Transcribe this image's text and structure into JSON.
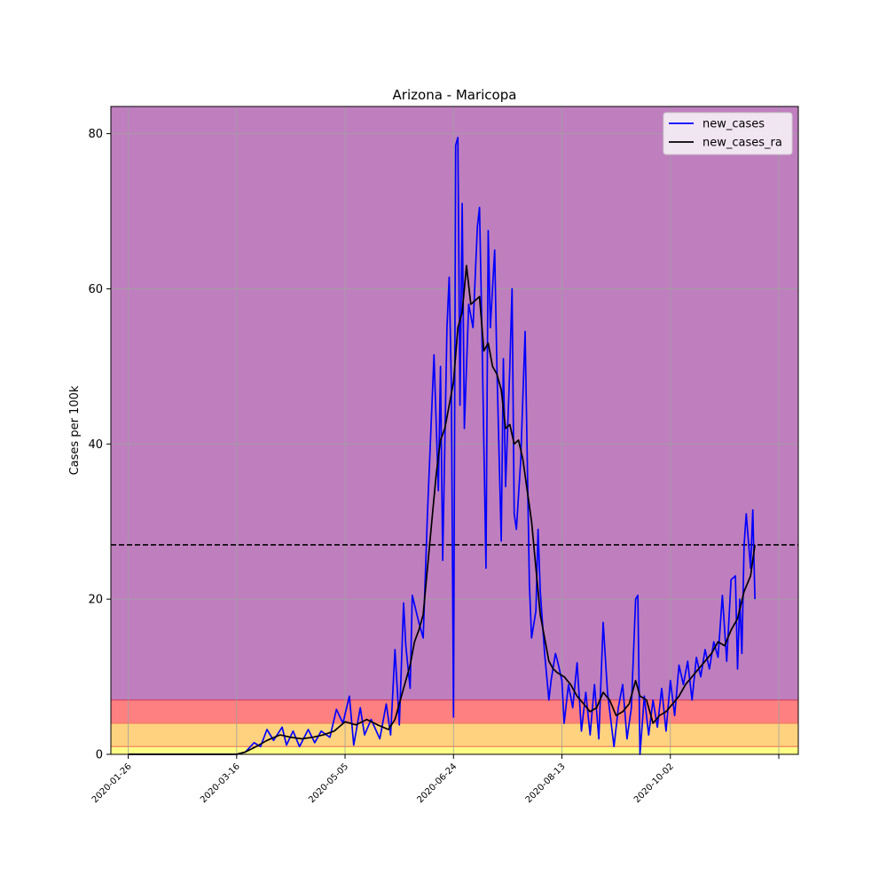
{
  "chart_data": {
    "type": "line",
    "title": "Arizona - Maricopa",
    "xlabel": "",
    "ylabel": "Cases per 100k",
    "x_ticks": [
      "2020-01-26",
      "2020-03-16",
      "2020-05-05",
      "2020-06-24",
      "2020-08-13",
      "2020-10-02"
    ],
    "x_range": [
      "2020-01-18",
      "2020-11-30"
    ],
    "y_ticks": [
      0,
      20,
      40,
      60,
      80
    ],
    "ylim": [
      0,
      83.5
    ],
    "grid": true,
    "legend_position": "top-right",
    "background_bands": [
      {
        "from": 0,
        "to": 1,
        "color": "#ffff88"
      },
      {
        "from": 1,
        "to": 4,
        "color": "#ffd27f"
      },
      {
        "from": 4,
        "to": 7,
        "color": "#ff8080"
      },
      {
        "from": 7,
        "to": 83.5,
        "color": "#bf7fbf"
      }
    ],
    "threshold_line": {
      "y": 27,
      "color": "#000000",
      "style": "dashed"
    },
    "series": [
      {
        "name": "new_cases",
        "color": "#0000ff",
        "points": [
          [
            "2020-01-26",
            0
          ],
          [
            "2020-03-16",
            0
          ],
          [
            "2020-03-20",
            0.3
          ],
          [
            "2020-03-24",
            1.5
          ],
          [
            "2020-03-27",
            1.0
          ],
          [
            "2020-03-30",
            3.2
          ],
          [
            "2020-04-02",
            1.8
          ],
          [
            "2020-04-06",
            3.5
          ],
          [
            "2020-04-08",
            1.2
          ],
          [
            "2020-04-11",
            3.0
          ],
          [
            "2020-04-14",
            1.0
          ],
          [
            "2020-04-18",
            3.2
          ],
          [
            "2020-04-21",
            1.5
          ],
          [
            "2020-04-24",
            3.0
          ],
          [
            "2020-04-28",
            2.2
          ],
          [
            "2020-05-01",
            5.8
          ],
          [
            "2020-05-04",
            4.0
          ],
          [
            "2020-05-07",
            7.5
          ],
          [
            "2020-05-09",
            1.2
          ],
          [
            "2020-05-12",
            6.0
          ],
          [
            "2020-05-14",
            2.5
          ],
          [
            "2020-05-17",
            4.5
          ],
          [
            "2020-05-21",
            2.0
          ],
          [
            "2020-05-24",
            6.5
          ],
          [
            "2020-05-26",
            2.5
          ],
          [
            "2020-05-28",
            13.5
          ],
          [
            "2020-05-30",
            3.8
          ],
          [
            "2020-06-01",
            19.5
          ],
          [
            "2020-06-02",
            14.0
          ],
          [
            "2020-06-04",
            8.5
          ],
          [
            "2020-06-05",
            20.5
          ],
          [
            "2020-06-08",
            17.0
          ],
          [
            "2020-06-10",
            15.0
          ],
          [
            "2020-06-12",
            31.0
          ],
          [
            "2020-06-15",
            51.5
          ],
          [
            "2020-06-17",
            34.0
          ],
          [
            "2020-06-18",
            50.0
          ],
          [
            "2020-06-19",
            25.0
          ],
          [
            "2020-06-21",
            55.0
          ],
          [
            "2020-06-22",
            61.5
          ],
          [
            "2020-06-23",
            48.0
          ],
          [
            "2020-06-24",
            4.8
          ],
          [
            "2020-06-25",
            78.5
          ],
          [
            "2020-06-26",
            79.5
          ],
          [
            "2020-06-27",
            45.0
          ],
          [
            "2020-06-28",
            71.0
          ],
          [
            "2020-06-29",
            42.0
          ],
          [
            "2020-07-01",
            58.0
          ],
          [
            "2020-07-03",
            55.0
          ],
          [
            "2020-07-05",
            68.0
          ],
          [
            "2020-07-06",
            70.5
          ],
          [
            "2020-07-07",
            56.0
          ],
          [
            "2020-07-09",
            24.0
          ],
          [
            "2020-07-10",
            67.5
          ],
          [
            "2020-07-11",
            55.0
          ],
          [
            "2020-07-13",
            65.0
          ],
          [
            "2020-07-14",
            50.0
          ],
          [
            "2020-07-16",
            27.5
          ],
          [
            "2020-07-17",
            51.0
          ],
          [
            "2020-07-18",
            34.5
          ],
          [
            "2020-07-20",
            50.0
          ],
          [
            "2020-07-21",
            60.0
          ],
          [
            "2020-07-22",
            31.0
          ],
          [
            "2020-07-23",
            29.0
          ],
          [
            "2020-07-25",
            38.0
          ],
          [
            "2020-07-27",
            54.5
          ],
          [
            "2020-07-29",
            22.0
          ],
          [
            "2020-07-30",
            15.0
          ],
          [
            "2020-08-01",
            18.5
          ],
          [
            "2020-08-02",
            29.0
          ],
          [
            "2020-08-03",
            21.0
          ],
          [
            "2020-08-05",
            13.0
          ],
          [
            "2020-08-07",
            7.0
          ],
          [
            "2020-08-08",
            9.5
          ],
          [
            "2020-08-10",
            13.0
          ],
          [
            "2020-08-11",
            12.0
          ],
          [
            "2020-08-13",
            9.5
          ],
          [
            "2020-08-14",
            4.0
          ],
          [
            "2020-08-16",
            9.0
          ],
          [
            "2020-08-18",
            6.0
          ],
          [
            "2020-08-20",
            11.8
          ],
          [
            "2020-08-22",
            3.0
          ],
          [
            "2020-08-24",
            8.0
          ],
          [
            "2020-08-26",
            2.5
          ],
          [
            "2020-08-28",
            9.0
          ],
          [
            "2020-08-30",
            2.0
          ],
          [
            "2020-09-01",
            17.0
          ],
          [
            "2020-09-03",
            8.0
          ],
          [
            "2020-09-06",
            1.0
          ],
          [
            "2020-09-08",
            6.0
          ],
          [
            "2020-09-10",
            9.0
          ],
          [
            "2020-09-12",
            2.0
          ],
          [
            "2020-09-14",
            6.0
          ],
          [
            "2020-09-16",
            20.0
          ],
          [
            "2020-09-17",
            20.5
          ],
          [
            "2020-09-18",
            0
          ],
          [
            "2020-09-20",
            7.5
          ],
          [
            "2020-09-22",
            2.5
          ],
          [
            "2020-09-24",
            7.0
          ],
          [
            "2020-09-26",
            3.5
          ],
          [
            "2020-09-28",
            8.5
          ],
          [
            "2020-09-30",
            3.0
          ],
          [
            "2020-10-02",
            9.5
          ],
          [
            "2020-10-04",
            5.0
          ],
          [
            "2020-10-06",
            11.5
          ],
          [
            "2020-10-08",
            9.0
          ],
          [
            "2020-10-10",
            12.0
          ],
          [
            "2020-10-12",
            7.0
          ],
          [
            "2020-10-14",
            12.5
          ],
          [
            "2020-10-16",
            10.0
          ],
          [
            "2020-10-18",
            13.5
          ],
          [
            "2020-10-20",
            11.0
          ],
          [
            "2020-10-22",
            14.5
          ],
          [
            "2020-10-24",
            12.5
          ],
          [
            "2020-10-26",
            20.5
          ],
          [
            "2020-10-28",
            12.0
          ],
          [
            "2020-10-30",
            22.5
          ],
          [
            "2020-11-01",
            23.0
          ],
          [
            "2020-11-02",
            11.0
          ],
          [
            "2020-11-03",
            20.0
          ],
          [
            "2020-11-04",
            13.0
          ],
          [
            "2020-11-05",
            27.0
          ],
          [
            "2020-11-06",
            31.0
          ],
          [
            "2020-11-08",
            24.0
          ],
          [
            "2020-11-09",
            31.5
          ],
          [
            "2020-11-10",
            20.0
          ]
        ]
      },
      {
        "name": "new_cases_ra",
        "color": "#000000",
        "points": [
          [
            "2020-01-26",
            0
          ],
          [
            "2020-03-16",
            0
          ],
          [
            "2020-03-20",
            0.3
          ],
          [
            "2020-03-25",
            1.0
          ],
          [
            "2020-03-30",
            1.8
          ],
          [
            "2020-04-05",
            2.5
          ],
          [
            "2020-04-10",
            2.2
          ],
          [
            "2020-04-15",
            2.0
          ],
          [
            "2020-04-20",
            2.2
          ],
          [
            "2020-04-25",
            2.5
          ],
          [
            "2020-04-30",
            3.0
          ],
          [
            "2020-05-05",
            4.2
          ],
          [
            "2020-05-10",
            3.8
          ],
          [
            "2020-05-15",
            4.5
          ],
          [
            "2020-05-20",
            3.8
          ],
          [
            "2020-05-25",
            3.2
          ],
          [
            "2020-05-28",
            4.5
          ],
          [
            "2020-06-01",
            8.5
          ],
          [
            "2020-06-04",
            11.5
          ],
          [
            "2020-06-06",
            14.5
          ],
          [
            "2020-06-08",
            16.0
          ],
          [
            "2020-06-10",
            18.0
          ],
          [
            "2020-06-12",
            24.0
          ],
          [
            "2020-06-14",
            30.0
          ],
          [
            "2020-06-16",
            36.0
          ],
          [
            "2020-06-18",
            40.5
          ],
          [
            "2020-06-20",
            42.0
          ],
          [
            "2020-06-22",
            45.0
          ],
          [
            "2020-06-24",
            48.0
          ],
          [
            "2020-06-26",
            55.0
          ],
          [
            "2020-06-28",
            57.0
          ],
          [
            "2020-06-30",
            63.0
          ],
          [
            "2020-07-02",
            58.0
          ],
          [
            "2020-07-04",
            58.5
          ],
          [
            "2020-07-06",
            59.0
          ],
          [
            "2020-07-08",
            52.0
          ],
          [
            "2020-07-10",
            53.0
          ],
          [
            "2020-07-12",
            50.0
          ],
          [
            "2020-07-14",
            49.0
          ],
          [
            "2020-07-16",
            47.0
          ],
          [
            "2020-07-18",
            42.0
          ],
          [
            "2020-07-20",
            42.5
          ],
          [
            "2020-07-22",
            40.0
          ],
          [
            "2020-07-24",
            40.5
          ],
          [
            "2020-07-26",
            38.0
          ],
          [
            "2020-07-28",
            34.0
          ],
          [
            "2020-07-30",
            30.0
          ],
          [
            "2020-08-01",
            24.0
          ],
          [
            "2020-08-03",
            18.0
          ],
          [
            "2020-08-05",
            15.0
          ],
          [
            "2020-08-07",
            12.0
          ],
          [
            "2020-08-09",
            11.0
          ],
          [
            "2020-08-11",
            10.5
          ],
          [
            "2020-08-14",
            10.0
          ],
          [
            "2020-08-17",
            9.0
          ],
          [
            "2020-08-20",
            7.5
          ],
          [
            "2020-08-23",
            6.5
          ],
          [
            "2020-08-26",
            5.5
          ],
          [
            "2020-08-29",
            6.0
          ],
          [
            "2020-09-01",
            8.0
          ],
          [
            "2020-09-04",
            7.0
          ],
          [
            "2020-09-07",
            5.0
          ],
          [
            "2020-09-10",
            5.5
          ],
          [
            "2020-09-13",
            6.5
          ],
          [
            "2020-09-16",
            9.5
          ],
          [
            "2020-09-18",
            7.5
          ],
          [
            "2020-09-21",
            7.0
          ],
          [
            "2020-09-24",
            4.0
          ],
          [
            "2020-09-27",
            5.0
          ],
          [
            "2020-09-30",
            5.5
          ],
          [
            "2020-10-03",
            6.5
          ],
          [
            "2020-10-06",
            7.5
          ],
          [
            "2020-10-09",
            9.0
          ],
          [
            "2020-10-12",
            10.0
          ],
          [
            "2020-10-15",
            11.0
          ],
          [
            "2020-10-18",
            12.0
          ],
          [
            "2020-10-21",
            13.0
          ],
          [
            "2020-10-24",
            14.5
          ],
          [
            "2020-10-27",
            14.0
          ],
          [
            "2020-10-30",
            16.0
          ],
          [
            "2020-11-02",
            17.5
          ],
          [
            "2020-11-05",
            21.0
          ],
          [
            "2020-11-08",
            23.0
          ],
          [
            "2020-11-10",
            27.0
          ]
        ]
      }
    ]
  }
}
